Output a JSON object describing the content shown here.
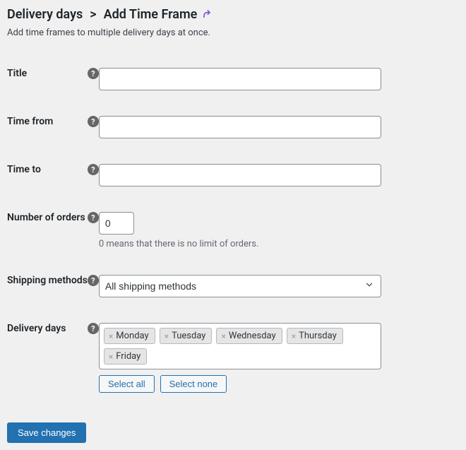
{
  "header": {
    "breadcrumb_parent": "Delivery days",
    "breadcrumb_sep": ">",
    "breadcrumb_current": "Add Time Frame",
    "icon_name": "arrow-up-right"
  },
  "subtitle": "Add time frames to multiple delivery days at once.",
  "fields": {
    "title": {
      "label": "Title",
      "value": ""
    },
    "time_from": {
      "label": "Time from",
      "value": ""
    },
    "time_to": {
      "label": "Time to",
      "value": ""
    },
    "number_of_orders": {
      "label": "Number of orders",
      "value": "0",
      "helper": "0 means that there is no limit of orders."
    },
    "shipping_methods": {
      "label": "Shipping methods",
      "selected": "All shipping methods"
    },
    "delivery_days": {
      "label": "Delivery days",
      "tags": [
        "Monday",
        "Tuesday",
        "Wednesday",
        "Thursday",
        "Friday"
      ],
      "select_all": "Select all",
      "select_none": "Select none"
    }
  },
  "submit": {
    "label": "Save changes"
  },
  "styling": {
    "background": "#f0f0f1",
    "text_color": "#1d2327",
    "input_border": "#8c8f94",
    "tag_bg": "#e5e5e5",
    "tag_border": "#b4b9be",
    "primary_btn_bg": "#2271b1",
    "primary_btn_text": "#ffffff",
    "secondary_btn_border": "#2271b1",
    "secondary_btn_text": "#2271b1",
    "help_icon_bg": "#666666",
    "heading_icon_color": "#8250df"
  }
}
